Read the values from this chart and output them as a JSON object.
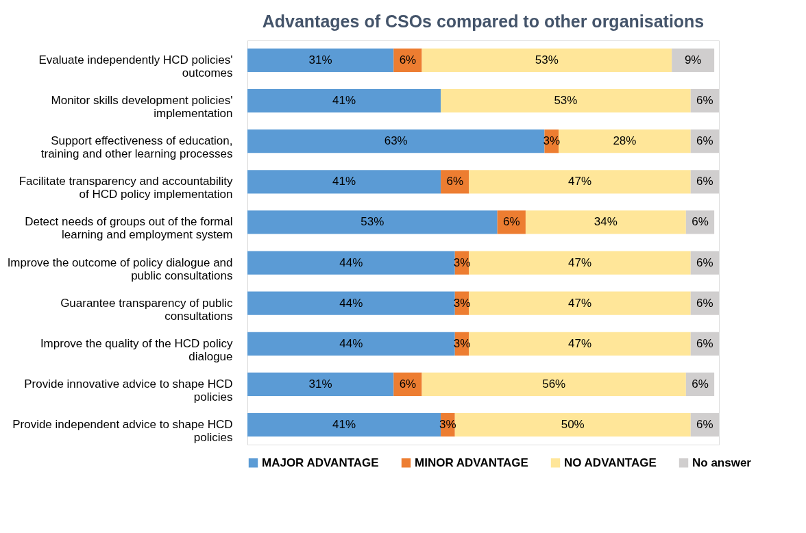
{
  "chart_data": {
    "type": "bar",
    "orientation": "horizontal",
    "stacked": true,
    "grid": false,
    "legend": "bottom",
    "title": "Advantages of CSOs compared to other organisations",
    "categories": [
      "Evaluate independently HCD policies' outcomes",
      "Monitor skills development policies' implementation",
      "Support effectiveness of education, training and other learning processes",
      "Facilitate transparency and accountability of HCD policy implementation",
      "Detect needs of groups out of the formal learning and employment system",
      "Improve the outcome of policy dialogue and public consultations",
      "Guarantee transparency of public consultations",
      "Improve the quality of the HCD policy dialogue",
      "Provide innovative advice to shape HCD policies",
      "Provide independent advice to shape HCD policies"
    ],
    "series": [
      {
        "name": "MAJOR ADVANTAGE",
        "color": "#5b9bd5",
        "values": [
          31,
          41,
          63,
          41,
          53,
          44,
          44,
          44,
          31,
          41
        ],
        "value_labels": [
          "31%",
          "41%",
          "63%",
          "41%",
          "53%",
          "44%",
          "44%",
          "44%",
          "31%",
          "41%"
        ]
      },
      {
        "name": "MINOR ADVANTAGE",
        "color": "#ed7d31",
        "values": [
          6,
          null,
          3,
          6,
          6,
          3,
          3,
          3,
          6,
          3
        ],
        "value_labels": [
          "6%",
          null,
          "3%",
          "6%",
          "6%",
          "3%",
          "3%",
          "3%",
          "6%",
          "3%"
        ]
      },
      {
        "name": "NO ADVANTAGE",
        "color": "#ffe699",
        "values": [
          53,
          53,
          28,
          47,
          34,
          47,
          47,
          47,
          56,
          50
        ],
        "value_labels": [
          "53%",
          "53%",
          "28%",
          "47%",
          "34%",
          "47%",
          "47%",
          "47%",
          "56%",
          "50%"
        ]
      },
      {
        "name": "No answer",
        "color": "#d0cece",
        "values": [
          9,
          6,
          6,
          6,
          6,
          6,
          6,
          6,
          6,
          6
        ],
        "value_labels": [
          "9%",
          "6%",
          "6%",
          "6%",
          "6%",
          "6%",
          "6%",
          "6%",
          "6%",
          "6%"
        ]
      }
    ]
  }
}
